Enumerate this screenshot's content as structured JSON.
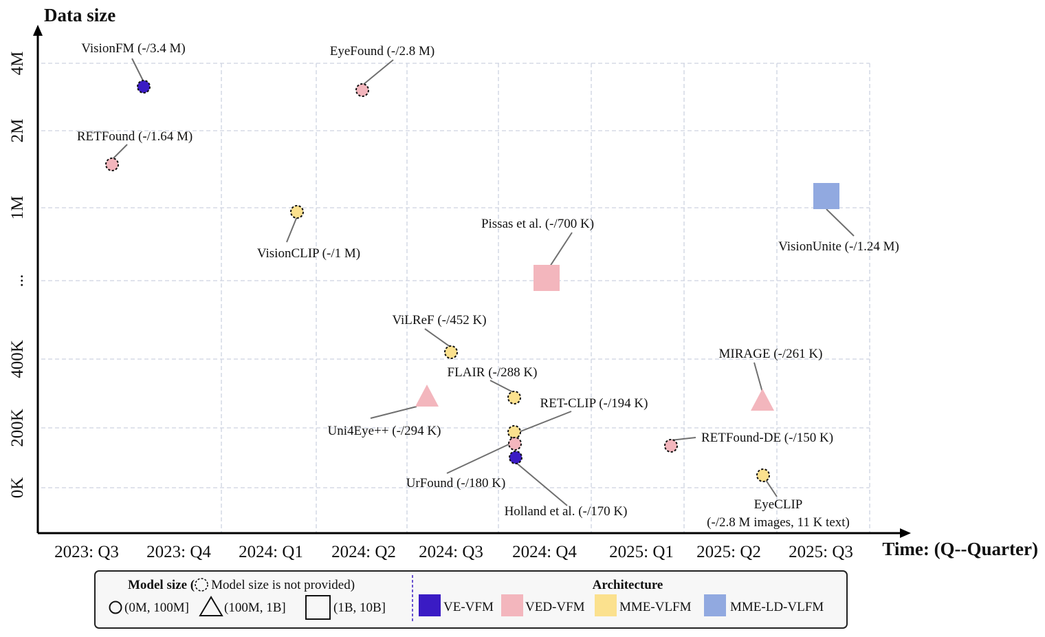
{
  "chart_data": {
    "type": "scatter",
    "xlabel": "Time: (Q--Quarter)",
    "ylabel": "Data size",
    "x_categories": [
      "2023: Q3",
      "2023: Q4",
      "2024: Q1",
      "2024: Q2",
      "2024: Q3",
      "2024: Q4",
      "2025: Q1",
      "2025: Q2",
      "2025: Q3"
    ],
    "y_ticks": [
      "0K",
      "200K",
      "400K",
      "...",
      "1M",
      "2M",
      "4M"
    ],
    "grid": true,
    "legend_placement": "bottom",
    "points": [
      {
        "label": "VisionFM (-/3.4 M)",
        "x": "2023: Q4",
        "y_display": "3.4M",
        "shape": "circle",
        "architecture": "VE-VFM",
        "model_size_provided": false
      },
      {
        "label": "EyeFound (-/2.8 M)",
        "x": "2024: Q2",
        "y_display": "2.8M",
        "shape": "circle",
        "architecture": "VED-VFM",
        "model_size_provided": false
      },
      {
        "label": "RETFound (-/1.64 M)",
        "x": "2023: Q3",
        "y_display": "1.64M",
        "shape": "circle",
        "architecture": "VED-VFM",
        "model_size_provided": false
      },
      {
        "label": "VisionCLIP (-/1 M)",
        "x": "2024: Q1",
        "y_display": "1M",
        "shape": "circle",
        "architecture": "MME-VLFM",
        "model_size_provided": false
      },
      {
        "label": "VisionUnite (-/1.24 M)",
        "x": "2025: Q3",
        "y_display": "1.24M",
        "shape": "square",
        "architecture": "MME-LD-VLFM",
        "model_size_provided": true
      },
      {
        "label": "Pissas et al. (-/700 K)",
        "x": "2024: Q4",
        "y_display": "700K",
        "shape": "square",
        "architecture": "VED-VFM",
        "model_size_provided": true
      },
      {
        "label": "ViLReF (-/452 K)",
        "x": "2024: Q3",
        "y_display": "452K",
        "shape": "circle",
        "architecture": "MME-VLFM",
        "model_size_provided": false
      },
      {
        "label": "Uni4Eye++ (-/294 K)",
        "x": "2024: Q3",
        "y_display": "294K",
        "shape": "triangle",
        "architecture": "VED-VFM",
        "model_size_provided": true
      },
      {
        "label": "FLAIR (-/288 K)",
        "x": "2024: Q4",
        "y_display": "288K",
        "shape": "circle",
        "architecture": "MME-VLFM",
        "model_size_provided": false
      },
      {
        "label": "MIRAGE (-/261 K)",
        "x": "2025: Q2",
        "y_display": "261K",
        "shape": "triangle",
        "architecture": "VED-VFM",
        "model_size_provided": true
      },
      {
        "label": "RET-CLIP (-/194 K)",
        "x": "2024: Q4",
        "y_display": "194K",
        "shape": "circle",
        "architecture": "MME-VLFM",
        "model_size_provided": false
      },
      {
        "label": "UrFound (-/180 K)",
        "x": "2024: Q4",
        "y_display": "180K",
        "shape": "circle",
        "architecture": "VED-VFM",
        "model_size_provided": false
      },
      {
        "label": "Holland et al. (-/170 K)",
        "x": "2024: Q4",
        "y_display": "170K",
        "shape": "circle",
        "architecture": "VE-VFM",
        "model_size_provided": false
      },
      {
        "label": "RETFound-DE (-/150 K)",
        "x": "2025: Q1",
        "y_display": "150K",
        "shape": "circle",
        "architecture": "VED-VFM",
        "model_size_provided": false
      },
      {
        "label": "EyeCLIP",
        "label2": "(-/2.8 M images, 11 K text)",
        "x": "2025: Q2",
        "y_display": "2.8M images, 11K text",
        "shape": "circle",
        "architecture": "MME-VLFM",
        "model_size_provided": false
      }
    ],
    "legend": {
      "model_size_title_prefix": "Model size (",
      "model_size_title_note": "Model size is not provided)",
      "sizes": [
        "(0M, 100M]",
        "(100M, 1B]",
        "(1B, 10B]"
      ],
      "architecture_title": "Architecture",
      "architectures": [
        {
          "name": "VE-VFM",
          "color": "#3a1bc4"
        },
        {
          "name": "VED-VFM",
          "color": "#f3b6bd"
        },
        {
          "name": "MME-VLFM",
          "color": "#fbe18e"
        },
        {
          "name": "MME-LD-VLFM",
          "color": "#91a9e0"
        }
      ]
    }
  }
}
